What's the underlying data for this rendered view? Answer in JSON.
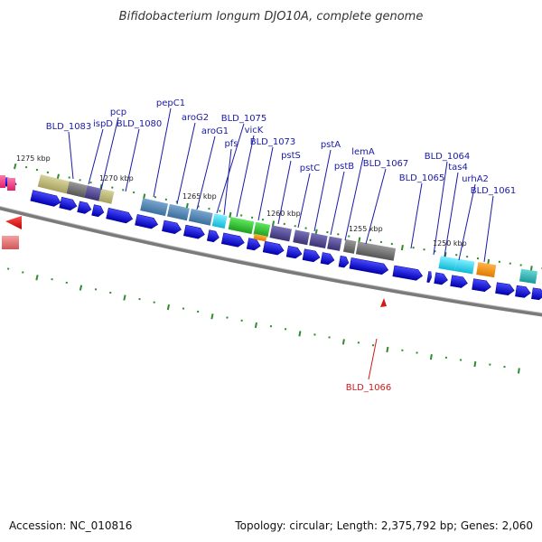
{
  "title": "Bifidobacterium longum DJO10A, complete genome",
  "footer": {
    "accession": "Accession: NC_010816",
    "topology": "Topology: circular; Length: 2,375,792 bp; Genes: 2,060"
  },
  "kbp_labels": [
    "1275 kbp",
    "1270 kbp",
    "1265 kbp",
    "1260 kbp",
    "1255 kbp",
    "1250 kbp"
  ],
  "gene_labels": [
    {
      "name": "BLD_1083",
      "color": "#1a1aa6"
    },
    {
      "name": "ispD",
      "color": "#1a1aa6"
    },
    {
      "name": "pcp",
      "color": "#1a1aa6"
    },
    {
      "name": "BLD_1080",
      "color": "#1a1aa6"
    },
    {
      "name": "pepC1",
      "color": "#1a1aa6"
    },
    {
      "name": "aroG2",
      "color": "#1a1aa6"
    },
    {
      "name": "aroG1",
      "color": "#1a1aa6"
    },
    {
      "name": "BLD_1075",
      "color": "#1a1aa6"
    },
    {
      "name": "pfs",
      "color": "#1a1aa6"
    },
    {
      "name": "vicK",
      "color": "#1a1aa6"
    },
    {
      "name": "BLD_1073",
      "color": "#1a1aa6"
    },
    {
      "name": "pstS",
      "color": "#1a1aa6"
    },
    {
      "name": "pstC",
      "color": "#1a1aa6"
    },
    {
      "name": "pstA",
      "color": "#1a1aa6"
    },
    {
      "name": "pstB",
      "color": "#1a1aa6"
    },
    {
      "name": "lemA",
      "color": "#1a1aa6"
    },
    {
      "name": "BLD_1067",
      "color": "#1a1aa6"
    },
    {
      "name": "BLD_1065",
      "color": "#1a1aa6"
    },
    {
      "name": "BLD_1064",
      "color": "#1a1aa6"
    },
    {
      "name": "tas4",
      "color": "#1a1aa6"
    },
    {
      "name": "urhA2",
      "color": "#1a1aa6"
    },
    {
      "name": "BLD_1061",
      "color": "#1a1aa6"
    },
    {
      "name": "BLD_1066",
      "color": "#d11a1a"
    }
  ],
  "colors": {
    "arrow_blue": "#0000e0",
    "backbone": "#808080",
    "tick_green": "#2e8b2e",
    "highlight_red": "#d11a1a"
  }
}
